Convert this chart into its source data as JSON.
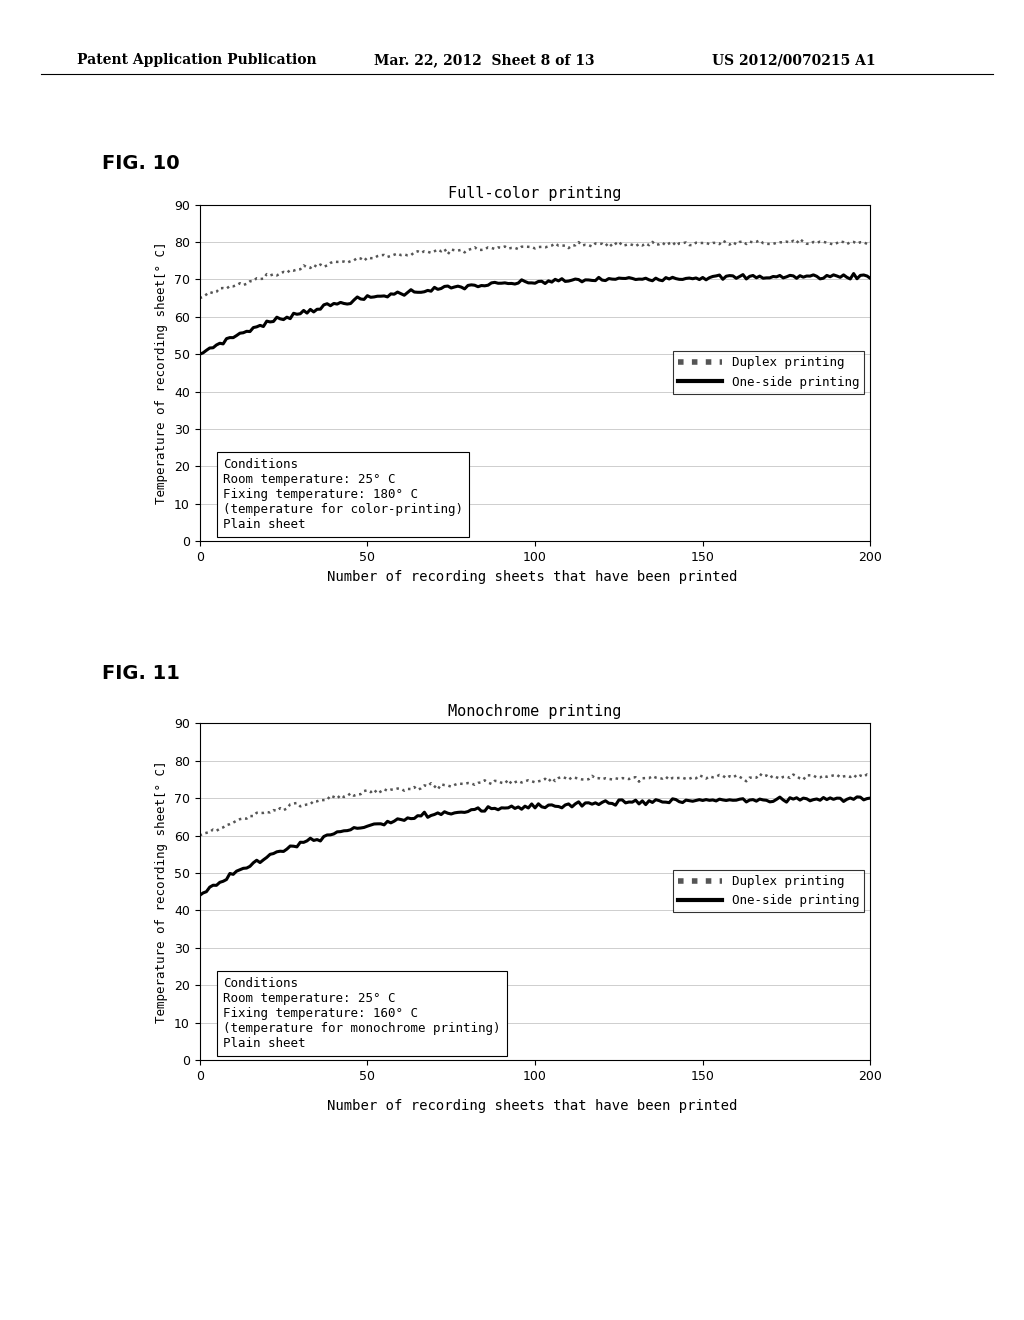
{
  "header_left": "Patent Application Publication",
  "header_mid": "Mar. 22, 2012  Sheet 8 of 13",
  "header_right": "US 2012/0070215 A1",
  "fig10_label": "FIG. 10",
  "fig11_label": "FIG. 11",
  "fig10_title": "Full-color printing",
  "fig11_title": "Monochrome printing",
  "ylabel": "Temperature of recording sheet[° C]",
  "xlabel": "Number of recording sheets that have been printed",
  "ylim": [
    0,
    90
  ],
  "xlim": [
    0,
    200
  ],
  "yticks": [
    0,
    10,
    20,
    30,
    40,
    50,
    60,
    70,
    80,
    90
  ],
  "xticks": [
    0,
    50,
    100,
    150,
    200
  ],
  "fig10_duplex_start": 65,
  "fig10_duplex_end": 80,
  "fig10_oneside_start": 50,
  "fig10_oneside_end": 71,
  "fig11_duplex_start": 60,
  "fig11_duplex_end": 76,
  "fig11_oneside_start": 44,
  "fig11_oneside_end": 70,
  "fig10_conditions": "Conditions\nRoom temperature: 25° C\nFixing temperature: 180° C\n(temperature for color-printing)\nPlain sheet",
  "fig11_conditions": "Conditions\nRoom temperature: 25° C\nFixing temperature: 160° C\n(temperature for monochrome printing)\nPlain sheet",
  "legend_duplex": "Duplex printing",
  "legend_oneside": "One-side printing",
  "bg_color": "#ffffff",
  "line_color_oneside": "#000000",
  "line_color_duplex": "#777777",
  "header_fontsize": 10,
  "fig_label_fontsize": 14,
  "title_fontsize": 11,
  "ylabel_fontsize": 9,
  "tick_fontsize": 9,
  "legend_fontsize": 9,
  "cond_fontsize": 9,
  "xlabel_fontsize": 10
}
